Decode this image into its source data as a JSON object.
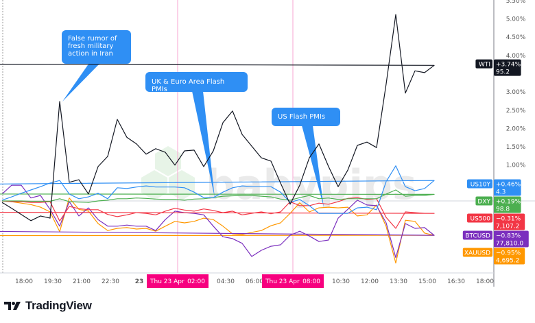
{
  "chart_data": {
    "type": "line",
    "ylabel": "",
    "xlabel": "",
    "y_unit": "%",
    "ylim": [
      -1.9,
      5.5
    ],
    "y_ticks": [
      "5.50%",
      "5.00%",
      "4.50%",
      "4.00%",
      "3.00%",
      "2.50%",
      "2.00%",
      "1.50%",
      "1.00%"
    ],
    "x_ticks": [
      "18:00",
      "19:30",
      "21:00",
      "22:30",
      "23",
      null,
      null,
      "04:30",
      "06:00",
      null,
      null,
      "10:30",
      "12:00",
      "13:30",
      "15:00",
      "16:30",
      "18:00"
    ],
    "x": [
      "17:00",
      "17:30",
      "18:00",
      "18:30",
      "19:00",
      "19:30",
      "20:00",
      "20:30",
      "21:00",
      "21:30",
      "22:00",
      "22:30",
      "23:00",
      "23:30",
      "00:00",
      "00:30",
      "01:00",
      "01:30",
      "02:00",
      "02:30",
      "03:00",
      "03:30",
      "04:00",
      "04:30",
      "05:00",
      "05:30",
      "06:00",
      "06:30",
      "07:00",
      "07:30",
      "08:00",
      "08:30",
      "09:00",
      "09:30",
      "10:00",
      "10:30",
      "11:00",
      "11:30",
      "12:00",
      "12:30",
      "13:00",
      "13:30",
      "14:00",
      "14:30",
      "15:00",
      "15:30",
      "16:00"
    ],
    "series": [
      {
        "name": "WTI",
        "color": "#131722",
        "change": "+3.74%",
        "price": "95.2",
        "values": [
          -0.04,
          -0.2,
          -0.37,
          -0.54,
          -0.41,
          -0.47,
          2.72,
          0.51,
          0.58,
          0.19,
          0.94,
          1.22,
          2.23,
          1.74,
          1.56,
          1.28,
          1.43,
          1.33,
          0.98,
          1.37,
          1.39,
          0.94,
          1.37,
          2.14,
          2.46,
          1.82,
          1.5,
          1.18,
          1.09,
          0.49,
          -0.09,
          0.43,
          1.18,
          1.56,
          0.94,
          0.39,
          0.84,
          1.52,
          1.61,
          1.46,
          3.2,
          5.1,
          2.95,
          3.56,
          3.51,
          3.71,
          3.74
        ]
      },
      {
        "name": "US10Y",
        "color": "#2f8ff4",
        "change": "+0.46%",
        "price": "4.3",
        "values": [
          0.02,
          0.11,
          0.21,
          0.3,
          0.39,
          0.49,
          0.56,
          0.19,
          0.06,
          0.11,
          0.21,
          0.06,
          0.36,
          0.34,
          0.38,
          0.41,
          0.38,
          0.38,
          0.38,
          0.36,
          0.24,
          0.09,
          0.09,
          0.24,
          0.36,
          0.41,
          0.39,
          0.39,
          0.39,
          0.24,
          -0.04,
          0.04,
          -0.13,
          -0.34,
          -0.34,
          -0.34,
          -0.34,
          -0.19,
          -0.17,
          -0.24,
          0.53,
          0.96,
          0.39,
          0.28,
          0.34,
          0.56,
          0.46
        ]
      },
      {
        "name": "DXY",
        "color": "#4caf50",
        "change": "+0.19%",
        "price": "98.8",
        "values": [
          0,
          0,
          0,
          -0.01,
          -0.01,
          -0.01,
          0.06,
          -0.02,
          -0.03,
          -0.04,
          0,
          0.02,
          0.06,
          0.06,
          0.08,
          0.07,
          0.05,
          0.04,
          0.04,
          0.02,
          0.05,
          0.06,
          0.09,
          0.13,
          0.14,
          0.15,
          0.15,
          0.13,
          0.11,
          0.05,
          0.02,
          0.09,
          0.15,
          0.06,
          0.08,
          0.04,
          0.06,
          0.06,
          0.06,
          0.06,
          0.19,
          0.3,
          0.13,
          0.15,
          0.15,
          0.18,
          0.19
        ]
      },
      {
        "name": "US500",
        "color": "#f23645",
        "change": "−0.31%",
        "price": "7,107.2",
        "values": [
          0,
          -0.02,
          -0.02,
          -0.04,
          -0.04,
          -0.02,
          -0.55,
          -0.15,
          -0.21,
          -0.24,
          -0.24,
          -0.37,
          -0.43,
          -0.38,
          -0.32,
          -0.34,
          -0.38,
          -0.28,
          -0.2,
          -0.25,
          -0.28,
          -0.22,
          -0.26,
          -0.32,
          -0.28,
          -0.38,
          -0.34,
          -0.3,
          -0.35,
          -0.3,
          -0.02,
          -0.13,
          -0.13,
          -0.06,
          -0.09,
          -0.02,
          0.07,
          0.09,
          0.04,
          0.06,
          -0.45,
          -0.75,
          -0.3,
          -0.32,
          -0.34,
          -0.34,
          -0.31
        ]
      },
      {
        "name": "BTCUSD",
        "color": "#7b2fbe",
        "change": "−0.83%",
        "price": "77,810.0",
        "values": [
          0.19,
          0.43,
          0.43,
          0.08,
          0.15,
          -0.23,
          -0.69,
          -0.02,
          -0.41,
          -0.19,
          -0.51,
          -0.69,
          -0.69,
          -0.66,
          -0.69,
          -0.69,
          -0.81,
          -0.51,
          -0.28,
          -0.32,
          -0.34,
          -0.38,
          -0.69,
          -0.98,
          -1.03,
          -1.16,
          -1.52,
          -1.35,
          -1.24,
          -1.2,
          -0.94,
          -0.83,
          -0.96,
          -1.11,
          -1.07,
          -0.47,
          -0.23,
          0.02,
          -0.11,
          -0.13,
          -0.6,
          -1.55,
          -0.62,
          -0.75,
          -0.73,
          -0.94,
          -0.83
        ]
      },
      {
        "name": "XAUUSD",
        "color": "#ff9800",
        "change": "−0.95%",
        "price": "4,695.2",
        "values": [
          0,
          -0.02,
          -0.06,
          -0.1,
          -0.17,
          -0.3,
          -0.84,
          0.08,
          -0.23,
          -0.28,
          -0.62,
          -0.81,
          -0.75,
          -0.73,
          -0.77,
          -0.75,
          -0.83,
          -0.69,
          -0.56,
          -0.6,
          -0.56,
          -0.47,
          -0.51,
          -0.69,
          -0.9,
          -0.92,
          -0.86,
          -0.81,
          -0.68,
          -0.6,
          -0.34,
          -0.05,
          -0.3,
          -0.19,
          -0.17,
          -0.19,
          -0.17,
          -0.41,
          -0.38,
          -0.11,
          -0.7,
          -1.7,
          -0.53,
          -0.56,
          -0.88,
          -0.94,
          -0.95
        ]
      }
    ],
    "crosshairs": [
      {
        "label": "Thu 23 Apr",
        "time": "02:00"
      },
      {
        "label": "Thu 23 Apr",
        "time": "08:00"
      }
    ],
    "annotations": [
      {
        "text": "False rumor of fresh military action in Iran",
        "time": "20:00",
        "series": "WTI"
      },
      {
        "text": "UK & Euro Area Flash PMIs",
        "time": "03:30",
        "series": "US10Y"
      },
      {
        "text": "US Flash PMIs",
        "time": "09:15",
        "series": "US10Y"
      }
    ],
    "grid": false,
    "legend": "right"
  },
  "watermark": "babypips",
  "brand": "TradingView",
  "colors": {
    "callout": "#2f8ff4",
    "crosshair": "#f7007f",
    "crosshair_line": "#f7a6d0"
  }
}
